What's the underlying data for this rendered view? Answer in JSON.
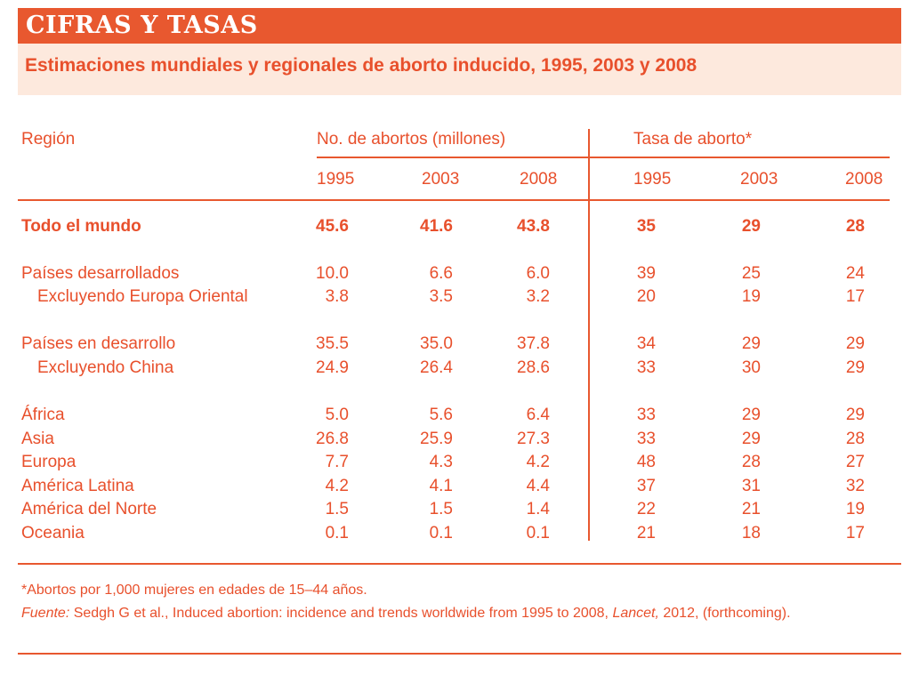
{
  "header": {
    "title": "CIFRAS Y TASAS"
  },
  "subtitle": "Estimaciones mundiales y regionales de aborto inducido, 1995, 2003 y 2008",
  "table": {
    "region_header": "Región",
    "group_count_header": "No. de abortos (millones)",
    "group_rate_header": "Tasa de aborto*",
    "years": [
      "1995",
      "2003",
      "2008",
      "1995",
      "2003",
      "2008"
    ],
    "rows": [
      {
        "label": "Todo el mundo",
        "values": [
          "45.6",
          "41.6",
          "43.8",
          "35",
          "29",
          "28"
        ]
      },
      {
        "label": "Países desarrollados",
        "values": [
          "10.0",
          "6.6",
          "6.0",
          "39",
          "25",
          "24"
        ]
      },
      {
        "label": "Excluyendo Europa Oriental",
        "values": [
          "3.8",
          "3.5",
          "3.2",
          "20",
          "19",
          "17"
        ]
      },
      {
        "label": "Países en desarrollo",
        "values": [
          "35.5",
          "35.0",
          "37.8",
          "34",
          "29",
          "29"
        ]
      },
      {
        "label": "Excluyendo China",
        "values": [
          "24.9",
          "26.4",
          "28.6",
          "33",
          "30",
          "29"
        ]
      },
      {
        "label": "África",
        "values": [
          "5.0",
          "5.6",
          "6.4",
          "33",
          "29",
          "29"
        ]
      },
      {
        "label": "Asia",
        "values": [
          "26.8",
          "25.9",
          "27.3",
          "33",
          "29",
          "28"
        ]
      },
      {
        "label": "Europa",
        "values": [
          "7.7",
          "4.3",
          "4.2",
          "48",
          "28",
          "27"
        ]
      },
      {
        "label": "América Latina",
        "values": [
          "4.2",
          "4.1",
          "4.4",
          "37",
          "31",
          "32"
        ]
      },
      {
        "label": "América del Norte",
        "values": [
          "1.5",
          "1.5",
          "1.4",
          "22",
          "21",
          "19"
        ]
      },
      {
        "label": "Oceania",
        "values": [
          "0.1",
          "0.1",
          "0.1",
          "21",
          "18",
          "17"
        ]
      }
    ]
  },
  "footnote": "*Abortos por 1,000 mujeres en edades de 15–44 años.",
  "source": {
    "label": "Fuente:",
    "text_before": " Sedgh G et al., Induced abortion: incidence and trends worldwide from 1995 to 2008, ",
    "journal": "Lancet,",
    "text_after": " 2012, (forthcoming)."
  }
}
